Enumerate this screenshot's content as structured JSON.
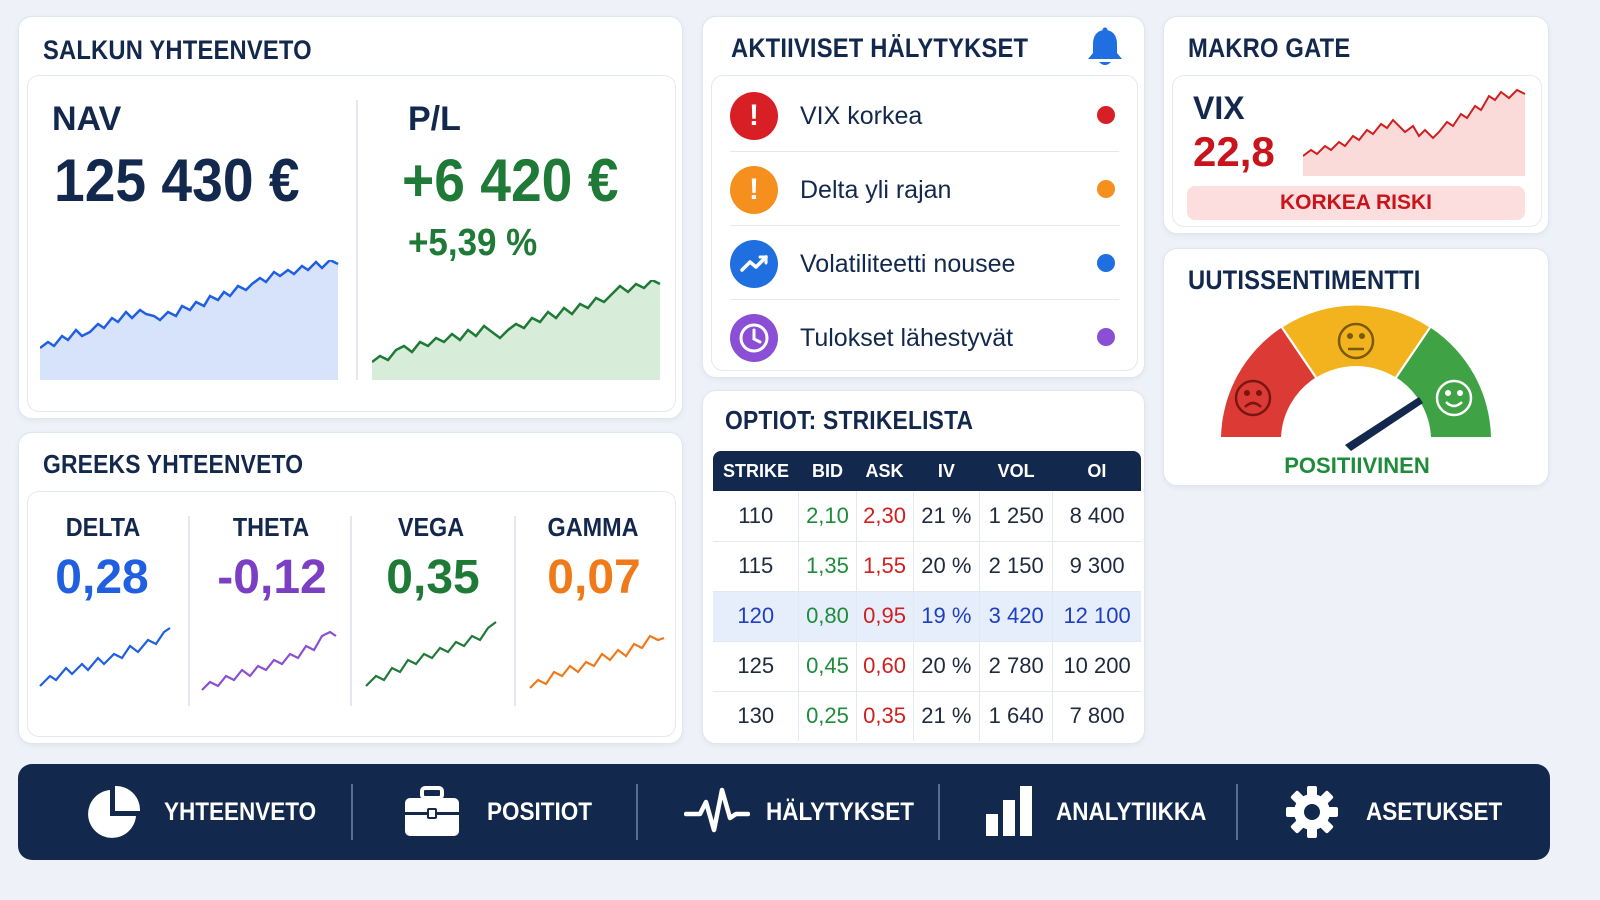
{
  "portfolio": {
    "title": "SALKUN YHTEENVETO",
    "nav_label": "NAV",
    "nav_value": "125 430 €",
    "pl_label": "P/L",
    "pl_value": "+6 420 €",
    "pl_percent": "+5,39 %"
  },
  "greeks": {
    "title": "GREEKS YHTEENVETO",
    "items": [
      {
        "label": "DELTA",
        "value": "0,28",
        "color": "#1f5fe0"
      },
      {
        "label": "THETA",
        "value": "-0,12",
        "color": "#7b3fc4"
      },
      {
        "label": "VEGA",
        "value": "0,35",
        "color": "#1e7a36"
      },
      {
        "label": "GAMMA",
        "value": "0,07",
        "color": "#f07a1a"
      }
    ]
  },
  "alerts": {
    "title": "AKTIIVISET HÄLYTYKSET",
    "bell_icon": "bell-icon",
    "items": [
      {
        "text": "VIX korkea",
        "icon": "exclamation-icon",
        "icon_color": "#d81f26",
        "dot_color": "#d81f26"
      },
      {
        "text": "Delta yli rajan",
        "icon": "exclamation-icon",
        "icon_color": "#f5901f",
        "dot_color": "#f5901f"
      },
      {
        "text": "Volatiliteetti nousee",
        "icon": "trend-up-icon",
        "icon_color": "#1f6fe0",
        "dot_color": "#1f6fe0"
      },
      {
        "text": "Tulokset lähestyvät",
        "icon": "clock-icon",
        "icon_color": "#8a4fd4",
        "dot_color": "#8a4fd4"
      }
    ]
  },
  "options": {
    "title": "OPTIOT: STRIKELISTA",
    "columns": [
      "STRIKE",
      "BID",
      "ASK",
      "IV",
      "VOL",
      "OI"
    ],
    "rows": [
      [
        "110",
        "2,10",
        "2,30",
        "21 %",
        "1 250",
        "8 400"
      ],
      [
        "115",
        "1,35",
        "1,55",
        "20 %",
        "2 150",
        "9 300"
      ],
      [
        "120",
        "0,80",
        "0,95",
        "19 %",
        "3 420",
        "12 100"
      ],
      [
        "125",
        "0,45",
        "0,60",
        "20 %",
        "2 780",
        "10 200"
      ],
      [
        "130",
        "0,25",
        "0,35",
        "21 %",
        "1 640",
        "7 800"
      ]
    ],
    "highlight_row": 2
  },
  "macro": {
    "title": "MAKRO GATE",
    "vix_label": "VIX",
    "vix_value": "22,8",
    "risk_badge": "KORKEA RISKI"
  },
  "sentiment": {
    "title": "UUTISSENTIMENTTI",
    "status": "POSITIIVINEN",
    "level": 0.78
  },
  "nav": {
    "items": [
      {
        "label": "YHTEENVETO",
        "icon": "pie-chart-icon"
      },
      {
        "label": "POSITIOT",
        "icon": "briefcase-icon"
      },
      {
        "label": "HÄLYTYKSET",
        "icon": "pulse-icon"
      },
      {
        "label": "ANALYTIIKKA",
        "icon": "bar-chart-icon"
      },
      {
        "label": "ASETUKSET",
        "icon": "gear-icon"
      }
    ]
  },
  "colors": {
    "navy": "#13284d",
    "green": "#1e7a36",
    "red": "#d11f1f",
    "blue": "#1f5fe0"
  }
}
